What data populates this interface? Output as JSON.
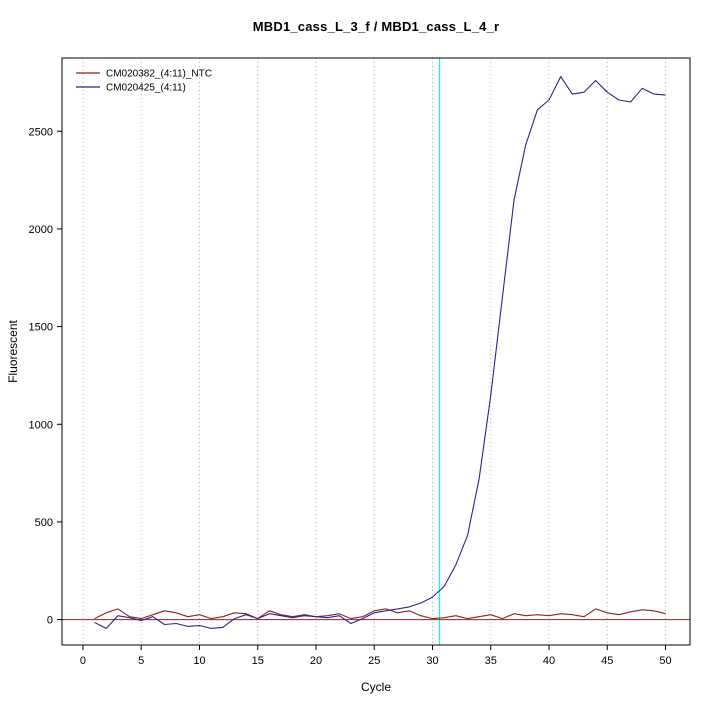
{
  "title": "MBD1_cass_L_3_f / MBD1_cass_L_4_r",
  "chart_data": {
    "type": "line",
    "title": "MBD1_cass_L_3_f / MBD1_cass_L_4_r",
    "xlabel": "Cycle",
    "ylabel": "Fluorescent",
    "xlim": [
      -1.8,
      52.1
    ],
    "ylim": [
      -130,
      2875
    ],
    "xticks": [
      0,
      5,
      10,
      15,
      20,
      25,
      30,
      35,
      40,
      45,
      50
    ],
    "yticks": [
      0,
      500,
      1000,
      1500,
      2000,
      2500
    ],
    "grid": "vertical-dotted",
    "grid_color": "#aaaaaa",
    "legend_position": "top-left",
    "x": [
      1,
      2,
      3,
      4,
      5,
      6,
      7,
      8,
      9,
      10,
      11,
      12,
      13,
      14,
      15,
      16,
      17,
      18,
      19,
      20,
      21,
      22,
      23,
      24,
      25,
      26,
      27,
      28,
      29,
      30,
      31,
      32,
      33,
      34,
      35,
      36,
      37,
      38,
      39,
      40,
      41,
      42,
      43,
      44,
      45,
      46,
      47,
      48,
      49,
      50
    ],
    "series": [
      {
        "name": "CM020382_(4:11)_NTC",
        "color": "#8B2323",
        "values": [
          5,
          35,
          55,
          15,
          5,
          25,
          45,
          35,
          15,
          25,
          5,
          15,
          35,
          30,
          5,
          45,
          25,
          15,
          25,
          15,
          20,
          30,
          5,
          15,
          45,
          55,
          35,
          45,
          20,
          5,
          10,
          20,
          5,
          15,
          25,
          5,
          30,
          20,
          25,
          20,
          30,
          25,
          15,
          55,
          35,
          25,
          40,
          50,
          45,
          30
        ]
      },
      {
        "name": "CM020425_(4:11)",
        "color": "#27278F",
        "values": [
          -15,
          -45,
          20,
          10,
          -5,
          15,
          -25,
          -20,
          -35,
          -30,
          -45,
          -40,
          5,
          25,
          5,
          30,
          20,
          10,
          20,
          15,
          10,
          20,
          -20,
          5,
          35,
          45,
          55,
          65,
          85,
          115,
          170,
          280,
          430,
          720,
          1150,
          1650,
          2150,
          2430,
          2610,
          2660,
          2780,
          2690,
          2700,
          2760,
          2700,
          2660,
          2650,
          2720,
          2690,
          2685
        ]
      }
    ],
    "baseline": {
      "y": 0,
      "color": "#8B2323"
    },
    "threshold_cycle_line": {
      "x": 30.6,
      "color": "#00FFFF"
    }
  }
}
